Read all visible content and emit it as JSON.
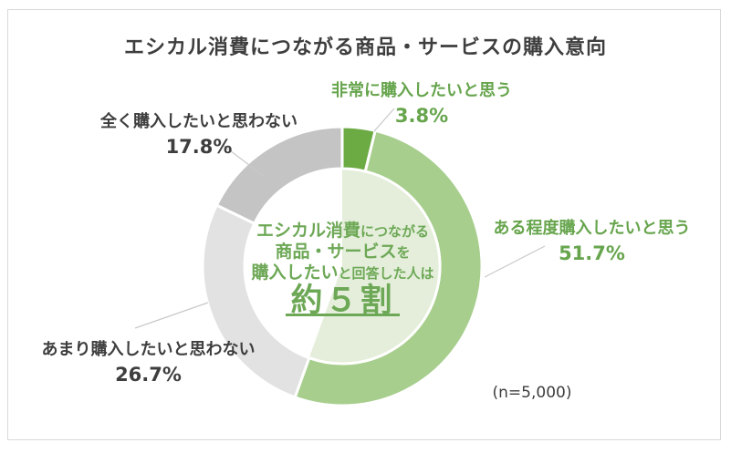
{
  "title": "エシカル消費につながる商品・サービスの購入意向",
  "chart_data": {
    "type": "pie",
    "subtype": "donut",
    "title": "エシカル消費につながる商品・サービスの購入意向",
    "categories": [
      "非常に購入したいと思う",
      "ある程度購入したいと思う",
      "あまり購入したいと思わない",
      "全く購入したいと思わない"
    ],
    "values": [
      3.8,
      51.7,
      26.7,
      17.8
    ],
    "unit": "%",
    "colors": [
      "#6cab44",
      "#a7ce8d",
      "#e2e2e2",
      "#c4c4c4"
    ],
    "start_at_12_oclock": true,
    "clockwise": true,
    "inner_highlight": {
      "covers_categories": [
        0,
        1
      ],
      "color": "#e4eeda"
    },
    "center_annotation": "エシカル消費につながる商品・サービスを購入したいと回答した人は 約５割",
    "sample_size_note": "(n=5,000)"
  },
  "callouts": {
    "very": {
      "label": "非常に購入したいと思う",
      "value": "3.8%"
    },
    "somewhat": {
      "label": "ある程度購入したいと思う",
      "value": "51.7%"
    },
    "not_really": {
      "label": "あまり購入したいと思わない",
      "value": "26.7%"
    },
    "not_at_all": {
      "label": "全く購入したいと思わない",
      "value": "17.8%"
    }
  },
  "center": {
    "line1_strong": "エシカル消費",
    "line1_rest": "につながる",
    "line2_strong": "商品・サービス",
    "line2_rest": "を",
    "line3_strong": "購入したい",
    "line3_rest": "と回答した人は",
    "headline": "約５割"
  },
  "colors": {
    "green_text": "#67a54d",
    "dark_text": "#3e3e3e",
    "leader_line": "#c9c9c9",
    "frame_border": "#d9d9d9"
  }
}
